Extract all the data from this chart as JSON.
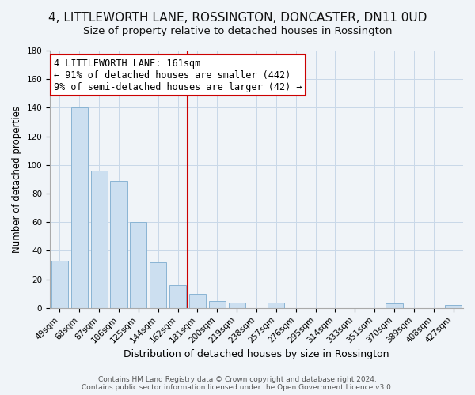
{
  "title": "4, LITTLEWORTH LANE, ROSSINGTON, DONCASTER, DN11 0UD",
  "subtitle": "Size of property relative to detached houses in Rossington",
  "xlabel": "Distribution of detached houses by size in Rossington",
  "ylabel": "Number of detached properties",
  "bar_labels": [
    "49sqm",
    "68sqm",
    "87sqm",
    "106sqm",
    "125sqm",
    "144sqm",
    "162sqm",
    "181sqm",
    "200sqm",
    "219sqm",
    "238sqm",
    "257sqm",
    "276sqm",
    "295sqm",
    "314sqm",
    "333sqm",
    "351sqm",
    "370sqm",
    "389sqm",
    "408sqm",
    "427sqm"
  ],
  "bar_values": [
    33,
    140,
    96,
    89,
    60,
    32,
    16,
    10,
    5,
    4,
    0,
    4,
    0,
    0,
    0,
    0,
    0,
    3,
    0,
    0,
    2
  ],
  "bar_color": "#ccdff0",
  "bar_edge_color": "#8ab4d4",
  "highlight_line_index": 6,
  "highlight_line_color": "#cc0000",
  "ylim": [
    0,
    180
  ],
  "yticks": [
    0,
    20,
    40,
    60,
    80,
    100,
    120,
    140,
    160,
    180
  ],
  "annotation_title": "4 LITTLEWORTH LANE: 161sqm",
  "annotation_line1": "← 91% of detached houses are smaller (442)",
  "annotation_line2": "9% of semi-detached houses are larger (42) →",
  "annotation_box_color": "#ffffff",
  "annotation_box_edge": "#cc0000",
  "footer1": "Contains HM Land Registry data © Crown copyright and database right 2024.",
  "footer2": "Contains public sector information licensed under the Open Government Licence v3.0.",
  "title_fontsize": 11,
  "subtitle_fontsize": 9.5,
  "xlabel_fontsize": 9,
  "ylabel_fontsize": 8.5,
  "tick_fontsize": 7.5,
  "annotation_fontsize": 8.5,
  "footer_fontsize": 6.5,
  "bg_color": "#f0f4f8"
}
